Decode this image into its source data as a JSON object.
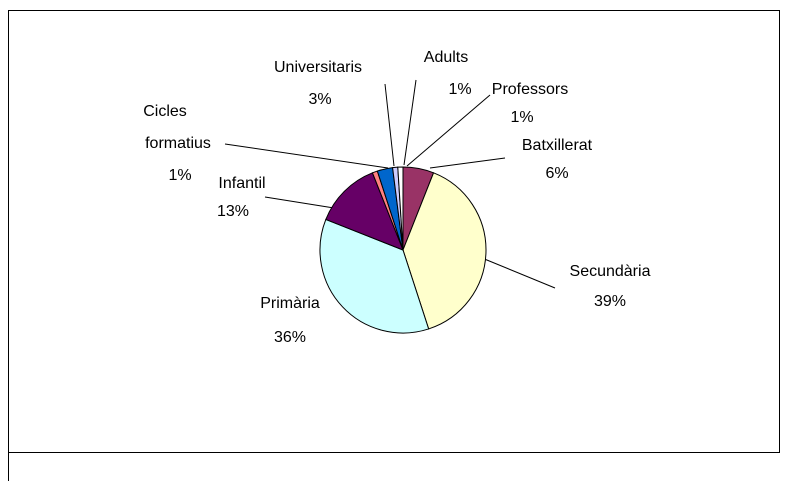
{
  "chart_data": {
    "type": "pie",
    "categories": [
      "Batxillerat",
      "Secundària",
      "Primària",
      "Infantil",
      "Cicles formatius",
      "Universitaris",
      "Adults",
      "Professors"
    ],
    "values": [
      6,
      39,
      36,
      13,
      1,
      3,
      1,
      1
    ],
    "value_labels": [
      "6%",
      "39%",
      "36%",
      "13%",
      "1%",
      "3%",
      "1%",
      "1%"
    ],
    "colors": [
      "#993366",
      "#ffffcc",
      "#ccffff",
      "#660066",
      "#ff8080",
      "#0066cc",
      "#ccccff",
      "#ffffff"
    ]
  }
}
